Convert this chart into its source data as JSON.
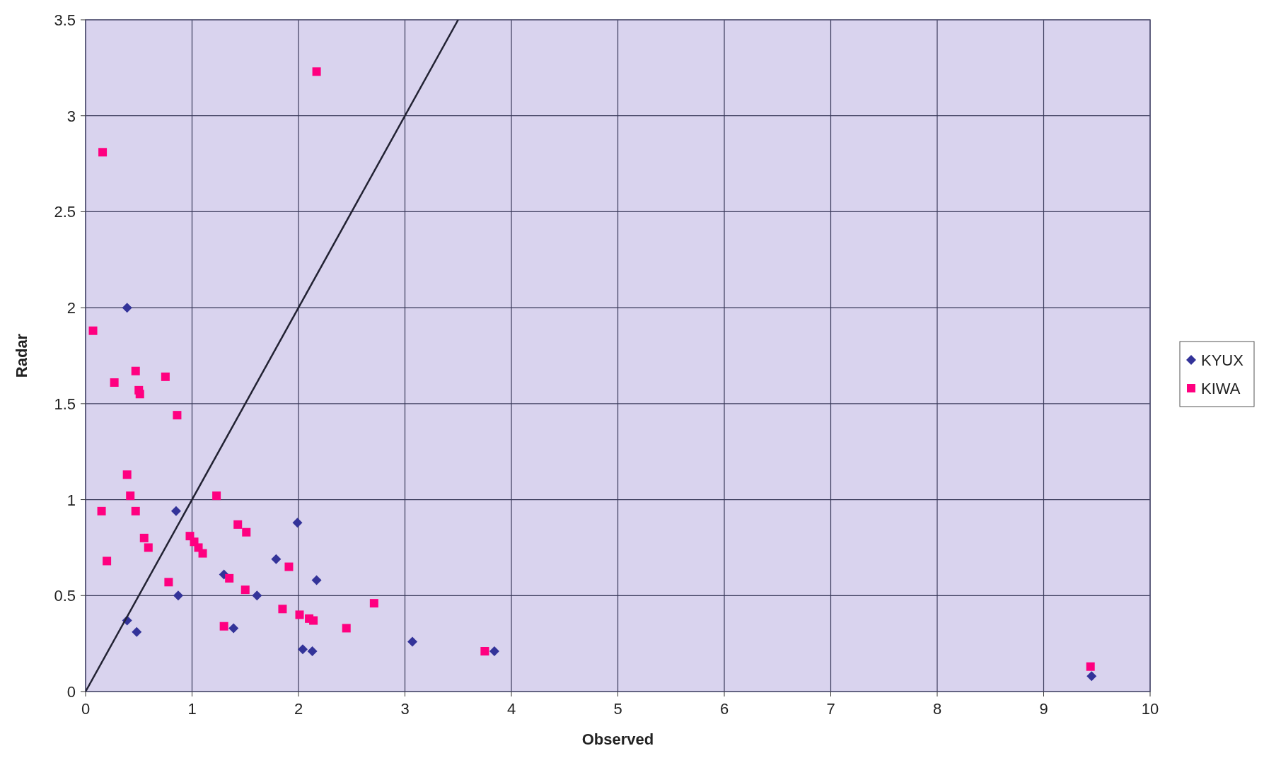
{
  "chart_data": {
    "type": "scatter",
    "xlabel": "Observed",
    "ylabel": "Radar",
    "xlim": [
      0,
      10
    ],
    "ylim": [
      0,
      3.5
    ],
    "xticks": [
      0,
      1,
      2,
      3,
      4,
      5,
      6,
      7,
      8,
      9,
      10
    ],
    "yticks": [
      0,
      0.5,
      1,
      1.5,
      2,
      2.5,
      3,
      3.5
    ],
    "grid": true,
    "legend": "right",
    "series": [
      {
        "name": "KYUX",
        "color": "#333399",
        "marker": "diamond",
        "x": [
          0.39,
          0.85,
          1.99,
          1.79,
          2.17,
          1.3,
          0.87,
          1.61,
          0.39,
          0.48,
          1.39,
          2.04,
          2.13,
          3.07,
          3.84,
          9.45
        ],
        "values": [
          2.0,
          0.94,
          0.88,
          0.69,
          0.58,
          0.61,
          0.5,
          0.5,
          0.37,
          0.31,
          0.33,
          0.22,
          0.21,
          0.26,
          0.21,
          0.08
        ]
      },
      {
        "name": "KIWA",
        "color": "#ff0080",
        "marker": "square",
        "x": [
          2.17,
          0.16,
          0.07,
          0.47,
          0.27,
          0.75,
          0.5,
          0.51,
          0.86,
          0.39,
          0.42,
          1.23,
          0.15,
          0.47,
          1.43,
          1.51,
          0.55,
          0.59,
          0.98,
          1.02,
          1.06,
          1.1,
          0.2,
          1.91,
          0.78,
          1.35,
          1.5,
          2.71,
          1.85,
          2.01,
          2.1,
          2.14,
          1.3,
          2.45,
          3.75,
          9.44
        ],
        "values": [
          3.23,
          2.81,
          1.88,
          1.67,
          1.61,
          1.64,
          1.57,
          1.55,
          1.44,
          1.13,
          1.02,
          1.02,
          0.94,
          0.94,
          0.87,
          0.83,
          0.8,
          0.75,
          0.81,
          0.78,
          0.75,
          0.72,
          0.68,
          0.65,
          0.57,
          0.59,
          0.53,
          0.46,
          0.43,
          0.4,
          0.38,
          0.37,
          0.34,
          0.33,
          0.21,
          0.13
        ]
      },
      {
        "type": "line",
        "color": "#222233",
        "marker": "none",
        "x": [
          0,
          3.5
        ],
        "values": [
          0,
          3.5
        ]
      }
    ]
  }
}
